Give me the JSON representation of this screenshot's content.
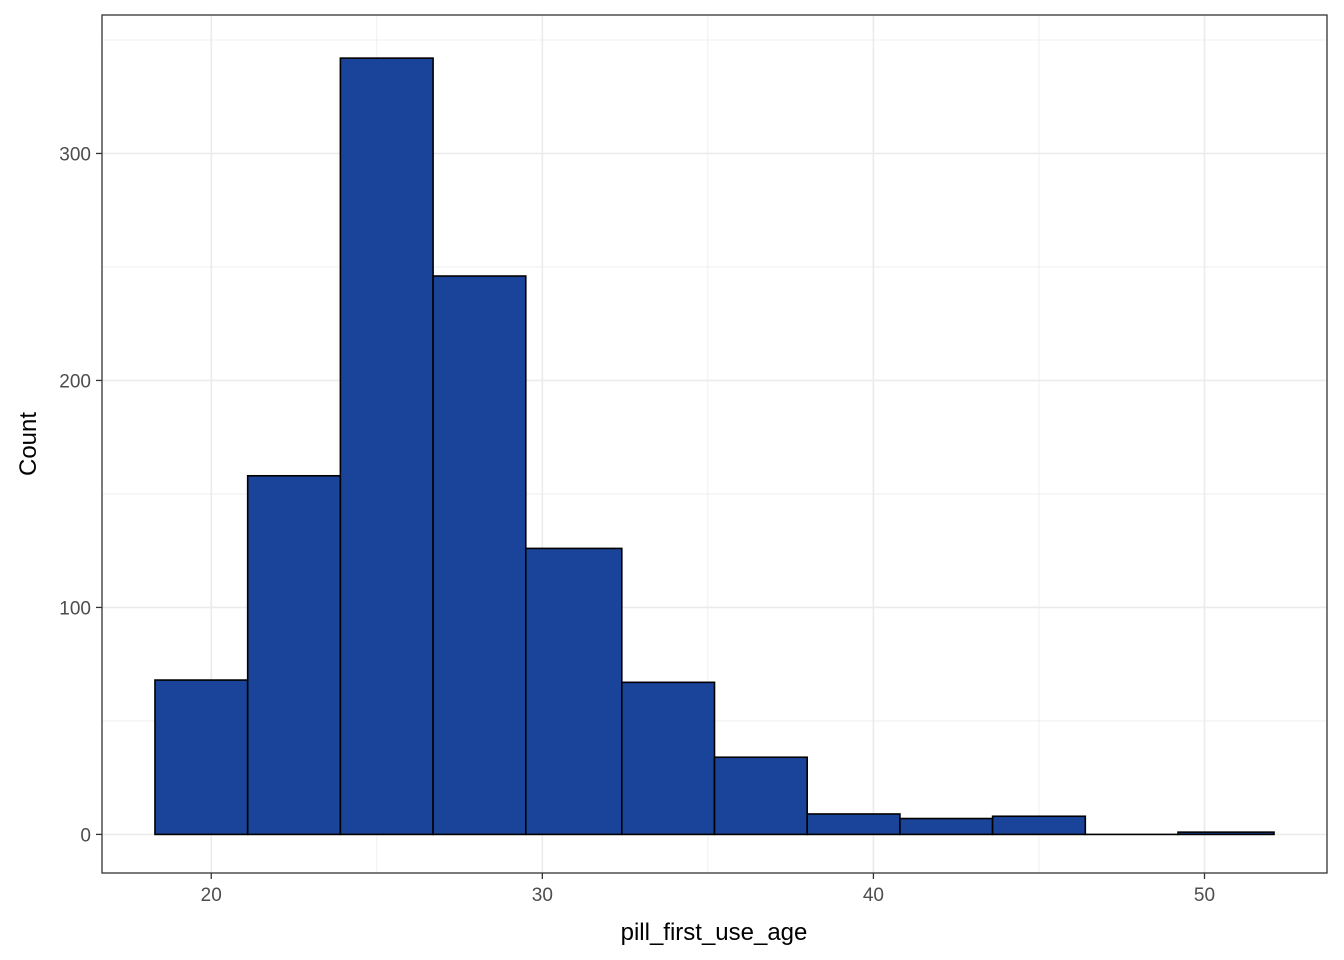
{
  "chart_data": {
    "type": "histogram",
    "title": "",
    "xlabel": "pill_first_use_age",
    "ylabel": "Count",
    "xlim": [
      16.7,
      53.7
    ],
    "ylim": [
      -17,
      361
    ],
    "grid": true,
    "fill_color": "#1a4499",
    "edge_color": "#000000",
    "x_ticks": [
      20,
      30,
      40,
      50
    ],
    "y_ticks": [
      0,
      100,
      200,
      300
    ],
    "bins": [
      {
        "x0": 18.3,
        "x1": 21.1,
        "count": 68
      },
      {
        "x0": 21.1,
        "x1": 23.9,
        "count": 158
      },
      {
        "x0": 23.9,
        "x1": 26.7,
        "count": 342
      },
      {
        "x0": 26.7,
        "x1": 29.5,
        "count": 246
      },
      {
        "x0": 29.5,
        "x1": 32.4,
        "count": 126
      },
      {
        "x0": 32.4,
        "x1": 35.2,
        "count": 67
      },
      {
        "x0": 35.2,
        "x1": 38.0,
        "count": 34
      },
      {
        "x0": 38.0,
        "x1": 40.8,
        "count": 9
      },
      {
        "x0": 40.8,
        "x1": 43.6,
        "count": 7
      },
      {
        "x0": 43.6,
        "x1": 46.4,
        "count": 8
      },
      {
        "x0": 46.4,
        "x1": 49.2,
        "count": 0
      },
      {
        "x0": 49.2,
        "x1": 52.1,
        "count": 1
      }
    ]
  }
}
